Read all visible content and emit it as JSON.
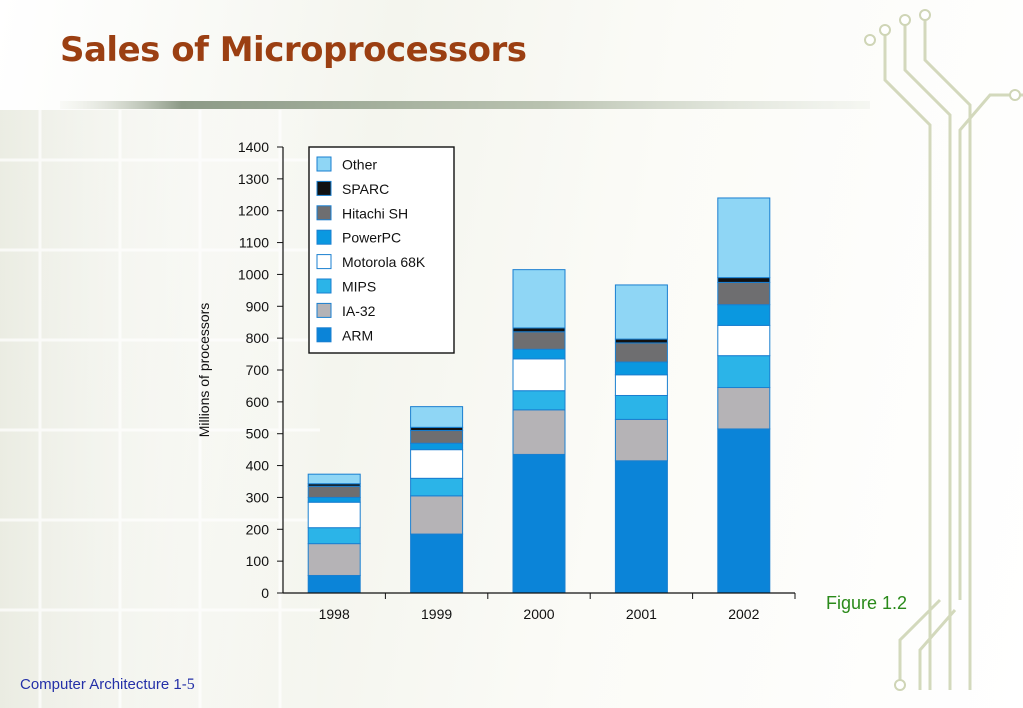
{
  "slide": {
    "title": "Sales of Microprocessors",
    "figure_caption": "Figure 1.2",
    "footer_text": "Computer Architecture 1-",
    "footer_page": "5"
  },
  "chart_data": {
    "type": "bar",
    "stacked": true,
    "title": "",
    "xlabel": "",
    "ylabel": "Millions of processors",
    "ylim": [
      0,
      1400
    ],
    "yticks": [
      0,
      100,
      200,
      300,
      400,
      500,
      600,
      700,
      800,
      900,
      1000,
      1100,
      1200,
      1300,
      1400
    ],
    "categories": [
      "1998",
      "1999",
      "2000",
      "2001",
      "2002"
    ],
    "legend_position": "top-left",
    "series": [
      {
        "name": "ARM",
        "color": "#0b84d8",
        "values": [
          55,
          185,
          435,
          415,
          515
        ]
      },
      {
        "name": "IA-32",
        "color": "#b5b3b6",
        "values": [
          100,
          120,
          140,
          130,
          130
        ]
      },
      {
        "name": "MIPS",
        "color": "#2bb4e8",
        "values": [
          50,
          55,
          60,
          75,
          100
        ]
      },
      {
        "name": "Motorola 68K",
        "color": "#ffffff",
        "values": [
          80,
          90,
          100,
          65,
          95
        ]
      },
      {
        "name": "PowerPC",
        "color": "#0a98e0",
        "values": [
          15,
          20,
          30,
          40,
          65
        ]
      },
      {
        "name": "Hitachi SH",
        "color": "#6e6e70",
        "values": [
          35,
          40,
          55,
          60,
          70
        ]
      },
      {
        "name": "SPARC",
        "color": "#111111",
        "values": [
          8,
          10,
          12,
          12,
          15
        ]
      },
      {
        "name": "Other",
        "color": "#8fd6f5",
        "values": [
          30,
          65,
          183,
          170,
          250
        ]
      }
    ]
  }
}
